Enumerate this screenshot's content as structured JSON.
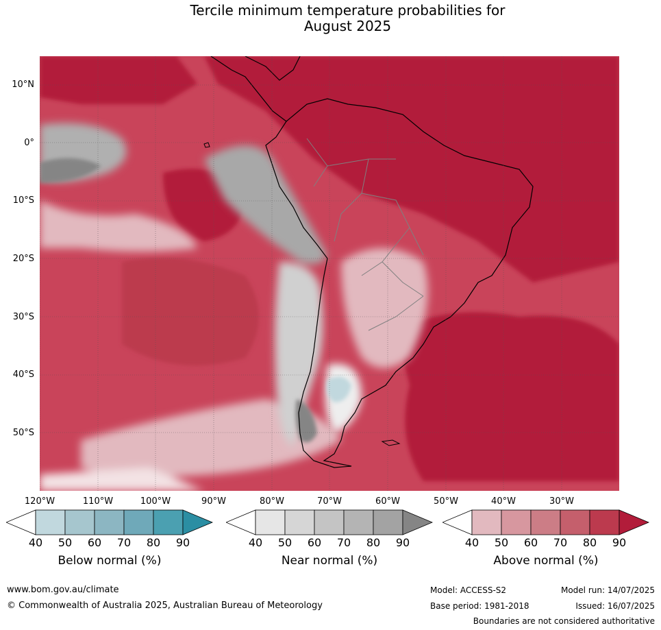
{
  "title_line1": "Tercile minimum temperature probabilities for",
  "title_line2": "August 2025",
  "lat_labels": [
    "10°N",
    "0°",
    "10°S",
    "20°S",
    "30°S",
    "40°S",
    "50°S"
  ],
  "lon_labels": [
    "120°W",
    "110°W",
    "100°W",
    "90°W",
    "80°W",
    "70°W",
    "60°W",
    "50°W",
    "40°W",
    "30°W"
  ],
  "colorbars": [
    {
      "title": "Below normal (%)",
      "ticks": [
        "40",
        "50",
        "60",
        "70",
        "80",
        "90"
      ],
      "colors": [
        "#ffffff",
        "#c1d8de",
        "#a6c6ce",
        "#8cb6c2",
        "#6fa9b9",
        "#4ba0b1",
        "#2b8ea3"
      ]
    },
    {
      "title": "Near normal (%)",
      "ticks": [
        "40",
        "50",
        "60",
        "70",
        "80",
        "90"
      ],
      "colors": [
        "#ffffff",
        "#e6e6e6",
        "#d6d6d6",
        "#c4c4c4",
        "#b4b4b4",
        "#a3a3a3",
        "#858585"
      ]
    },
    {
      "title": "Above normal (%)",
      "ticks": [
        "40",
        "50",
        "60",
        "70",
        "80",
        "90"
      ],
      "colors": [
        "#ffffff",
        "#e2b9bf",
        "#d7979f",
        "#cc7d86",
        "#c55f6c",
        "#bc3a4e",
        "#b21c3a"
      ]
    }
  ],
  "footer": {
    "url": "www.bom.gov.au/climate",
    "copyright": "© Commonwealth of Australia 2025, Australian Bureau of Meteorology",
    "model": "Model: ACCESS-S2",
    "model_run": "Model run: 14/07/2025",
    "base_period": "Base period: 1981-2018",
    "issued": "Issued: 16/07/2025",
    "disclaimer": "Boundaries are not considered authoritative"
  }
}
